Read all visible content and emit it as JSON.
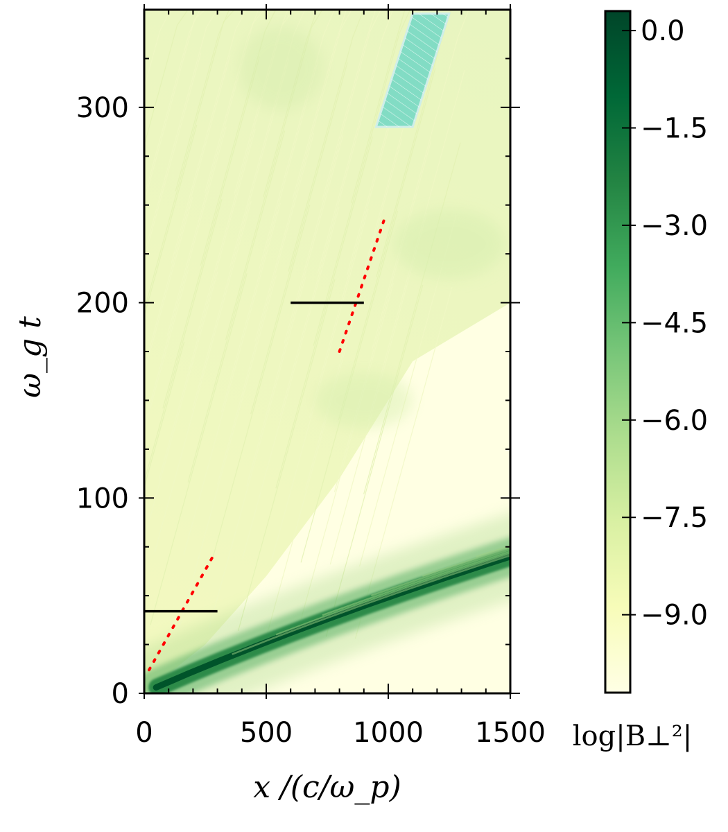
{
  "chart_data": {
    "type": "heatmap",
    "title": "",
    "xlabel": "x /(c/ω_p)",
    "ylabel": "ω_g t",
    "xlim": [
      0,
      1500
    ],
    "ylim": [
      0,
      350
    ],
    "x_ticks": [
      0,
      500,
      1000,
      1500
    ],
    "x_tick_labels": [
      "0",
      "500",
      "1000",
      "1500"
    ],
    "y_ticks": [
      0,
      100,
      200,
      300
    ],
    "y_tick_labels": [
      "0",
      "100",
      "200",
      "300"
    ],
    "grid": false,
    "colorbar": {
      "label": "log|B⊥²|",
      "range": [
        -10.2,
        0.3
      ],
      "ticks": [
        0.0,
        -1.5,
        -3.0,
        -4.5,
        -6.0,
        -7.5,
        -9.0
      ],
      "tick_labels": [
        "0.0",
        "−1.5",
        "−3.0",
        "−4.5",
        "−6.0",
        "−7.5",
        "−9.0"
      ],
      "colormap": "YlGn",
      "low_color": "#ffffe0",
      "high_color": "#00441b"
    },
    "annotations": {
      "horizontal_segments": [
        {
          "x": [
            0,
            300
          ],
          "y": 42,
          "color": "#000000"
        },
        {
          "x": [
            600,
            900
          ],
          "y": 200,
          "color": "#000000"
        }
      ],
      "dotted_lines": [
        {
          "x": [
            20,
            290
          ],
          "y": [
            12,
            72
          ],
          "color": "#ff0000"
        },
        {
          "x": [
            800,
            990
          ],
          "y": [
            175,
            245
          ],
          "color": "#ff0000"
        }
      ],
      "shaded_region": {
        "polygon": [
          [
            950,
            290
          ],
          [
            1100,
            290
          ],
          [
            1250,
            348
          ],
          [
            1100,
            348
          ]
        ],
        "color": "#5fd3c6",
        "hatched": true
      }
    }
  }
}
